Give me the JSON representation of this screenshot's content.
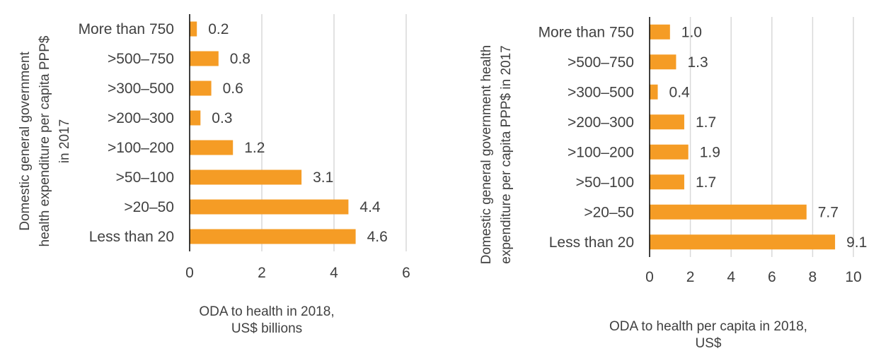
{
  "colors": {
    "bar": "#f59c25",
    "grid": "#d9d9d9",
    "text": "#404040",
    "axis": "#000000"
  },
  "chart_data": [
    {
      "type": "bar",
      "orientation": "horizontal",
      "categories": [
        "More than 750",
        ">500–750",
        ">300–500",
        ">200–300",
        ">100–200",
        ">50–100",
        ">20–50",
        "Less than 20"
      ],
      "values": [
        0.2,
        0.8,
        0.6,
        0.3,
        1.2,
        3.1,
        4.4,
        4.6
      ],
      "value_labels": [
        "0.2",
        "0.8",
        "0.6",
        "0.3",
        "1.2",
        "3.1",
        "4.4",
        "4.6"
      ],
      "xlim": [
        0,
        6
      ],
      "xticks": [
        0,
        2,
        4,
        6
      ],
      "grid": true,
      "xlabel_lines": [
        "ODA to health in 2018,",
        "US$ billions"
      ],
      "ylabel_lines": [
        "Domestic general government",
        "health expenditure per capita PPP$",
        "in 2017"
      ]
    },
    {
      "type": "bar",
      "orientation": "horizontal",
      "categories": [
        "More than 750",
        ">500–750",
        ">300–500",
        ">200–300",
        ">100–200",
        ">50–100",
        ">20–50",
        "Less than 20"
      ],
      "values": [
        1.0,
        1.3,
        0.4,
        1.7,
        1.9,
        1.7,
        7.7,
        9.1
      ],
      "value_labels": [
        "1.0",
        "1.3",
        "0.4",
        "1.7",
        "1.9",
        "1.7",
        "7.7",
        "9.1"
      ],
      "xlim": [
        0,
        10
      ],
      "xticks": [
        0,
        2,
        4,
        6,
        8,
        10
      ],
      "grid": true,
      "xlabel_lines": [
        "ODA to health per capita in 2018,",
        "US$"
      ],
      "ylabel_lines": [
        "Domestic general government health",
        "expenditure per capita PPP$ in 2017"
      ]
    }
  ]
}
